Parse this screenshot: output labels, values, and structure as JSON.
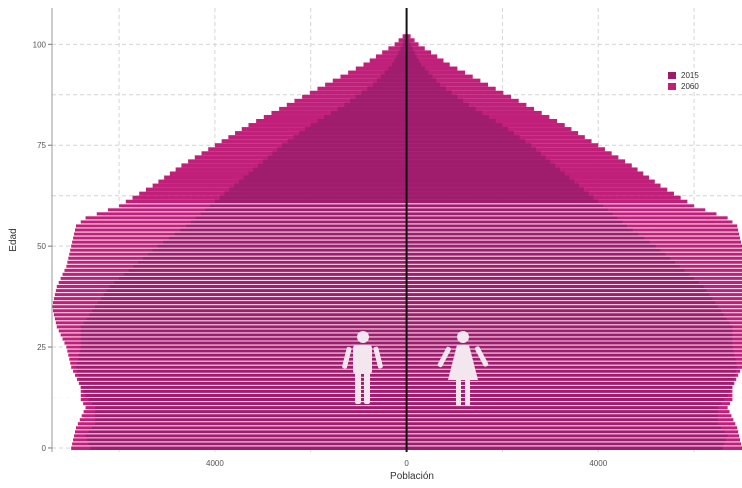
{
  "chart_data": {
    "type": "bar",
    "subtype": "population-pyramid",
    "title": "",
    "xlabel": "Población",
    "ylabel": "Edad",
    "xlim": [
      -7400,
      7000
    ],
    "ylim": [
      -1,
      109
    ],
    "x_ticks": [
      {
        "value": -4000,
        "label": "4000"
      },
      {
        "value": 0,
        "label": "0"
      },
      {
        "value": 4000,
        "label": "4000"
      }
    ],
    "y_ticks": [
      0,
      25,
      50,
      75,
      100
    ],
    "y_tick_labels": [
      "0",
      "25",
      "50",
      "75",
      "100"
    ],
    "grid": true,
    "legend_position": "right",
    "legend": [
      {
        "label": "2015",
        "color": "#9c1c6b"
      },
      {
        "label": "2060",
        "color": "#c0207a"
      }
    ],
    "left_side": "hombres",
    "right_side": "mujeres",
    "icons": [
      "male-figure-icon",
      "female-figure-icon"
    ],
    "series": [
      {
        "name": "2015",
        "color": "#9c1c6b",
        "age_points": [
          [
            0,
            6600
          ],
          [
            3,
            6700
          ],
          [
            6,
            6500
          ],
          [
            10,
            6500
          ],
          [
            13,
            6700
          ],
          [
            15,
            6800
          ],
          [
            20,
            6900
          ],
          [
            25,
            6800
          ],
          [
            30,
            6800
          ],
          [
            35,
            6500
          ],
          [
            40,
            6200
          ],
          [
            45,
            5700
          ],
          [
            50,
            5200
          ],
          [
            55,
            4600
          ],
          [
            60,
            4100
          ],
          [
            65,
            3600
          ],
          [
            70,
            3100
          ],
          [
            75,
            2600
          ],
          [
            80,
            2000
          ],
          [
            85,
            1300
          ],
          [
            90,
            700
          ],
          [
            95,
            300
          ],
          [
            100,
            80
          ],
          [
            103,
            0
          ]
        ]
      },
      {
        "name": "2060",
        "color": "#c0207a",
        "age_points": [
          [
            0,
            7000
          ],
          [
            5,
            6900
          ],
          [
            10,
            6700
          ],
          [
            12,
            6800
          ],
          [
            15,
            6800
          ],
          [
            20,
            7000
          ],
          [
            25,
            7100
          ],
          [
            30,
            7300
          ],
          [
            35,
            7400
          ],
          [
            40,
            7300
          ],
          [
            45,
            7100
          ],
          [
            50,
            7000
          ],
          [
            55,
            6900
          ],
          [
            57,
            6700
          ],
          [
            60,
            6000
          ],
          [
            65,
            5300
          ],
          [
            70,
            4700
          ],
          [
            75,
            4000
          ],
          [
            80,
            3300
          ],
          [
            85,
            2500
          ],
          [
            90,
            1700
          ],
          [
            95,
            900
          ],
          [
            100,
            250
          ],
          [
            103,
            0
          ]
        ]
      }
    ]
  }
}
